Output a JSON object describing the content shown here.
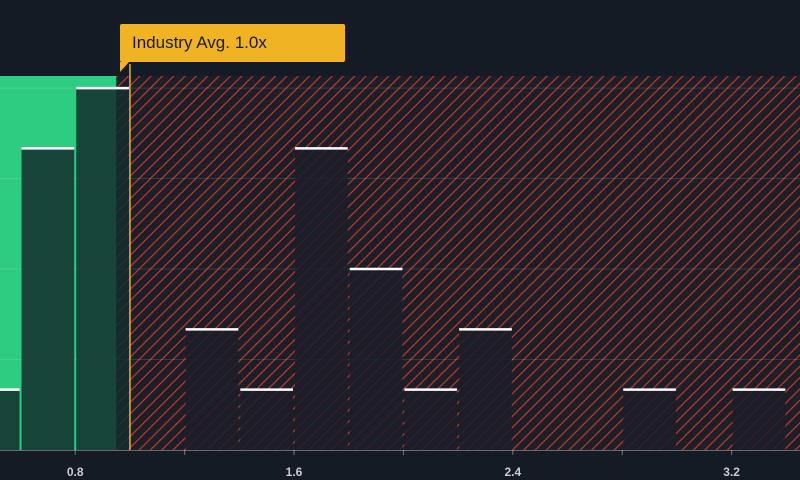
{
  "chart_data": {
    "type": "bar",
    "x_ticks": [
      0.8,
      1.6,
      2.4,
      3.2
    ],
    "x_tick_labels": [
      "0.8",
      "1.6",
      "2.4",
      "3.2"
    ],
    "xlim": [
      0.525,
      3.45
    ],
    "ylim": [
      0,
      6.2
    ],
    "grid": true,
    "bins": [
      {
        "x0": 0.4,
        "x1": 0.6,
        "count": 1
      },
      {
        "x0": 0.6,
        "x1": 0.8,
        "count": 5
      },
      {
        "x0": 0.8,
        "x1": 1.0,
        "count": 6
      },
      {
        "x0": 1.0,
        "x1": 1.2,
        "count": 0
      },
      {
        "x0": 1.2,
        "x1": 1.4,
        "count": 2
      },
      {
        "x0": 1.4,
        "x1": 1.6,
        "count": 1
      },
      {
        "x0": 1.6,
        "x1": 1.8,
        "count": 5
      },
      {
        "x0": 1.8,
        "x1": 2.0,
        "count": 3
      },
      {
        "x0": 2.0,
        "x1": 2.2,
        "count": 1
      },
      {
        "x0": 2.2,
        "x1": 2.4,
        "count": 2
      },
      {
        "x0": 2.4,
        "x1": 2.6,
        "count": 0
      },
      {
        "x0": 2.6,
        "x1": 2.8,
        "count": 0
      },
      {
        "x0": 2.8,
        "x1": 3.0,
        "count": 1
      },
      {
        "x0": 3.0,
        "x1": 3.2,
        "count": 0
      },
      {
        "x0": 3.2,
        "x1": 3.4,
        "count": 1
      }
    ],
    "good_value_range": [
      0.525,
      0.95
    ],
    "industry_average": 1.0,
    "annotation": "Industry Avg. 1.0x",
    "colors": {
      "background": "#151b24",
      "good_zone": "#2ecc80",
      "bad_zone_hatch": "#c0392b",
      "bar_dark": "#1f2a30",
      "bar_cap": "#ffffff",
      "average_line": "#f0b323"
    }
  }
}
